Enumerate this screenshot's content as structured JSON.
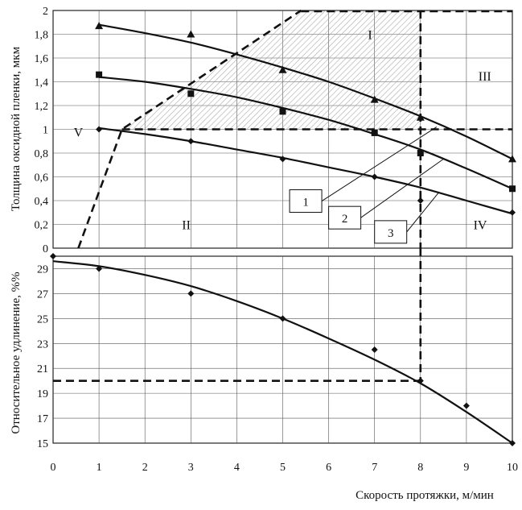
{
  "chart_data": [
    {
      "type": "line",
      "panel": "upper",
      "ylabel": "Толщина оксидной пленки, мкм",
      "xlim": [
        0,
        10
      ],
      "ylim": [
        0,
        2
      ],
      "xticks": [
        "0",
        "1",
        "2",
        "3",
        "4",
        "5",
        "6",
        "7",
        "8",
        "9",
        "10"
      ],
      "yticks": [
        "0",
        "0,2",
        "0,4",
        "0,6",
        "0,8",
        "1",
        "1,2",
        "1,4",
        "1,6",
        "1,8",
        "2"
      ],
      "grid": true,
      "series": [
        {
          "name": "1",
          "marker": "triangle",
          "points": [
            [
              1,
              1.87
            ],
            [
              3,
              1.8
            ],
            [
              5,
              1.5
            ],
            [
              7,
              1.25
            ],
            [
              8,
              1.1
            ],
            [
              10,
              0.75
            ]
          ],
          "curve": [
            [
              1,
              1.88
            ],
            [
              2,
              1.81
            ],
            [
              3,
              1.73
            ],
            [
              4,
              1.63
            ],
            [
              5,
              1.52
            ],
            [
              6,
              1.4
            ],
            [
              7,
              1.26
            ],
            [
              8,
              1.11
            ],
            [
              9,
              0.94
            ],
            [
              10,
              0.75
            ]
          ]
        },
        {
          "name": "2",
          "marker": "square",
          "points": [
            [
              1,
              1.46
            ],
            [
              3,
              1.3
            ],
            [
              5,
              1.15
            ],
            [
              7,
              0.97
            ],
            [
              8,
              0.8
            ],
            [
              10,
              0.5
            ]
          ],
          "curve": [
            [
              1,
              1.44
            ],
            [
              2,
              1.4
            ],
            [
              3,
              1.34
            ],
            [
              4,
              1.27
            ],
            [
              5,
              1.18
            ],
            [
              6,
              1.08
            ],
            [
              7,
              0.96
            ],
            [
              8,
              0.83
            ],
            [
              9,
              0.67
            ],
            [
              10,
              0.5
            ]
          ]
        },
        {
          "name": "3",
          "marker": "diamond",
          "points": [
            [
              1,
              1.0
            ],
            [
              3,
              0.9
            ],
            [
              5,
              0.75
            ],
            [
              7,
              0.6
            ],
            [
              8,
              0.4
            ],
            [
              10,
              0.3
            ]
          ],
          "curve": [
            [
              1,
              1.01
            ],
            [
              2,
              0.96
            ],
            [
              3,
              0.9
            ],
            [
              4,
              0.83
            ],
            [
              5,
              0.76
            ],
            [
              6,
              0.68
            ],
            [
              7,
              0.6
            ],
            [
              8,
              0.51
            ],
            [
              9,
              0.4
            ],
            [
              10,
              0.29
            ]
          ]
        }
      ],
      "region_labels": [
        "I",
        "II",
        "III",
        "IV",
        "V"
      ],
      "boundary": {
        "rising_line": [
          [
            0.55,
            0
          ],
          [
            1.5,
            1.0
          ],
          [
            5.4,
            2.0
          ]
        ],
        "top_line_y": 2.0,
        "horizontal_y": 1.0,
        "vertical_x": 8.0
      }
    },
    {
      "type": "line",
      "panel": "lower",
      "xlabel": "Скорость протяжки, м/мин",
      "ylabel": "Относительное удлинение, %%",
      "xlim": [
        0,
        10
      ],
      "ylim": [
        15,
        30
      ],
      "xticks": [
        "0",
        "1",
        "2",
        "3",
        "4",
        "5",
        "6",
        "7",
        "8",
        "9",
        "10"
      ],
      "yticks": [
        "15",
        "17",
        "19",
        "21",
        "23",
        "25",
        "27",
        "29"
      ],
      "grid": true,
      "series": [
        {
          "marker": "diamond",
          "points": [
            [
              0,
              30.0
            ],
            [
              1,
              29.0
            ],
            [
              3,
              27.0
            ],
            [
              5,
              25.0
            ],
            [
              7,
              22.5
            ],
            [
              8,
              20.0
            ],
            [
              9,
              18.0
            ],
            [
              10,
              15.0
            ]
          ],
          "curve": [
            [
              0,
              29.6
            ],
            [
              1,
              29.2
            ],
            [
              2,
              28.5
            ],
            [
              3,
              27.6
            ],
            [
              4,
              26.4
            ],
            [
              5,
              25.0
            ],
            [
              6,
              23.4
            ],
            [
              7,
              21.7
            ],
            [
              8,
              19.8
            ],
            [
              9,
              17.5
            ],
            [
              10,
              15.0
            ]
          ]
        }
      ],
      "dashed_reference": {
        "x": 8,
        "y": 20
      }
    }
  ]
}
